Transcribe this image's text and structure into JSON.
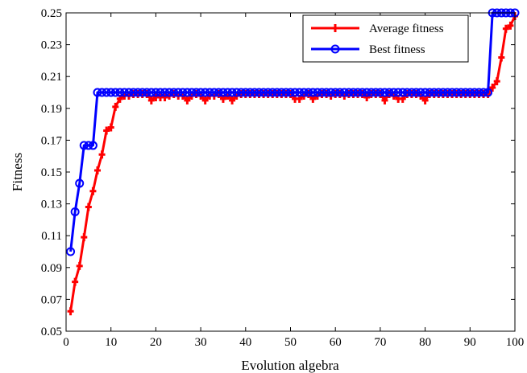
{
  "chart_data": {
    "type": "line",
    "xlabel": "Evolution algebra",
    "ylabel": "Fitness",
    "xlim": [
      0,
      100
    ],
    "ylim": [
      0.05,
      0.25
    ],
    "x_ticks": [
      0,
      10,
      20,
      30,
      40,
      50,
      60,
      70,
      80,
      90,
      100
    ],
    "x_tick_labels": [
      "0",
      "10",
      "20",
      "30",
      "40",
      "50",
      "60",
      "70",
      "80",
      "90",
      "100"
    ],
    "y_ticks": [
      0.05,
      0.07,
      0.09,
      0.11,
      0.13,
      0.15,
      0.17,
      0.19,
      0.21,
      0.23,
      0.25
    ],
    "y_tick_labels": [
      "0.05",
      "0.07",
      "0.09",
      "0.11",
      "0.13",
      "0.15",
      "0.17",
      "0.19",
      "0.21",
      "0.23",
      "0.25"
    ],
    "grid": false,
    "legend_position": "top-right",
    "x": [
      1,
      2,
      3,
      4,
      5,
      6,
      7,
      8,
      9,
      10,
      11,
      12,
      13,
      14,
      15,
      16,
      17,
      18,
      19,
      20,
      21,
      22,
      23,
      24,
      25,
      26,
      27,
      28,
      29,
      30,
      31,
      32,
      33,
      34,
      35,
      36,
      37,
      38,
      39,
      40,
      41,
      42,
      43,
      44,
      45,
      46,
      47,
      48,
      49,
      50,
      51,
      52,
      53,
      54,
      55,
      56,
      57,
      58,
      59,
      60,
      61,
      62,
      63,
      64,
      65,
      66,
      67,
      68,
      69,
      70,
      71,
      72,
      73,
      74,
      75,
      76,
      77,
      78,
      79,
      80,
      81,
      82,
      83,
      84,
      85,
      86,
      87,
      88,
      89,
      90,
      91,
      92,
      93,
      94,
      95,
      96,
      97,
      98,
      99,
      100
    ],
    "series": [
      {
        "name": "Average fitness",
        "color": "#ff0000",
        "marker": "plus",
        "values": [
          0.0625,
          0.081,
          0.091,
          0.109,
          0.128,
          0.138,
          0.151,
          0.161,
          0.176,
          0.178,
          0.191,
          0.196,
          0.198,
          0.198,
          0.199,
          0.199,
          0.199,
          0.199,
          0.195,
          0.197,
          0.197,
          0.197,
          0.198,
          0.199,
          0.198,
          0.198,
          0.195,
          0.198,
          0.199,
          0.198,
          0.195,
          0.198,
          0.198,
          0.199,
          0.196,
          0.198,
          0.195,
          0.198,
          0.199,
          0.199,
          0.199,
          0.199,
          0.199,
          0.199,
          0.199,
          0.199,
          0.199,
          0.199,
          0.199,
          0.199,
          0.196,
          0.196,
          0.198,
          0.199,
          0.196,
          0.198,
          0.199,
          0.199,
          0.198,
          0.199,
          0.199,
          0.198,
          0.199,
          0.199,
          0.199,
          0.199,
          0.197,
          0.199,
          0.199,
          0.199,
          0.195,
          0.199,
          0.198,
          0.196,
          0.196,
          0.199,
          0.199,
          0.199,
          0.198,
          0.195,
          0.199,
          0.199,
          0.199,
          0.199,
          0.199,
          0.199,
          0.199,
          0.199,
          0.199,
          0.199,
          0.199,
          0.199,
          0.199,
          0.199,
          0.203,
          0.207,
          0.222,
          0.24,
          0.242,
          0.248
        ]
      },
      {
        "name": "Best fitness",
        "color": "#0000ff",
        "marker": "circle",
        "values": [
          0.1,
          0.125,
          0.1429,
          0.1667,
          0.1667,
          0.1667,
          0.2,
          0.2,
          0.2,
          0.2,
          0.2,
          0.2,
          0.2,
          0.2,
          0.2,
          0.2,
          0.2,
          0.2,
          0.2,
          0.2,
          0.2,
          0.2,
          0.2,
          0.2,
          0.2,
          0.2,
          0.2,
          0.2,
          0.2,
          0.2,
          0.2,
          0.2,
          0.2,
          0.2,
          0.2,
          0.2,
          0.2,
          0.2,
          0.2,
          0.2,
          0.2,
          0.2,
          0.2,
          0.2,
          0.2,
          0.2,
          0.2,
          0.2,
          0.2,
          0.2,
          0.2,
          0.2,
          0.2,
          0.2,
          0.2,
          0.2,
          0.2,
          0.2,
          0.2,
          0.2,
          0.2,
          0.2,
          0.2,
          0.2,
          0.2,
          0.2,
          0.2,
          0.2,
          0.2,
          0.2,
          0.2,
          0.2,
          0.2,
          0.2,
          0.2,
          0.2,
          0.2,
          0.2,
          0.2,
          0.2,
          0.2,
          0.2,
          0.2,
          0.2,
          0.2,
          0.2,
          0.2,
          0.2,
          0.2,
          0.2,
          0.2,
          0.2,
          0.2,
          0.2,
          0.25,
          0.25,
          0.25,
          0.25,
          0.25,
          0.25
        ]
      }
    ]
  }
}
